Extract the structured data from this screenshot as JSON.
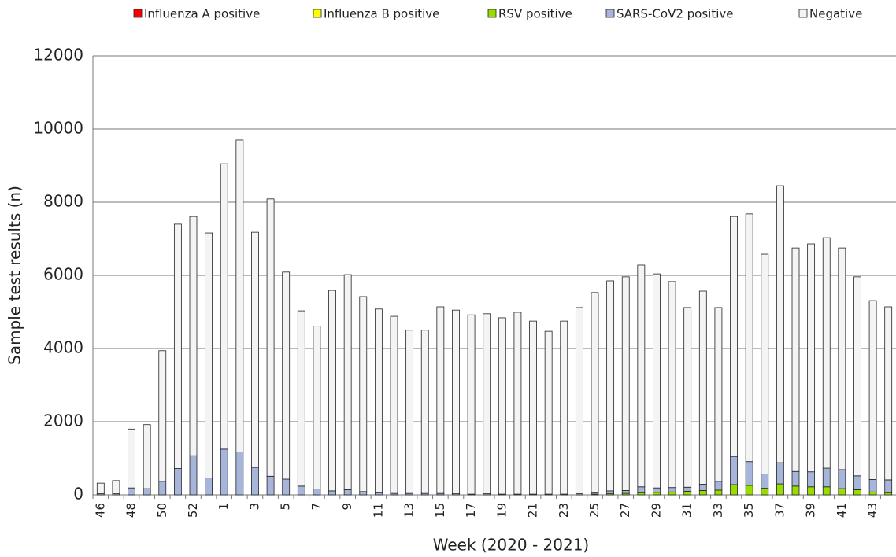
{
  "chart_data": {
    "type": "stacked_bar",
    "x_label": "Week (2020 - 2021)",
    "y_label": "Sample test results (n)",
    "categories": [
      "46",
      null,
      "48",
      null,
      "50",
      null,
      "52",
      null,
      "1",
      null,
      "3",
      null,
      "5",
      null,
      "7",
      null,
      "9",
      null,
      "11",
      null,
      "13",
      null,
      "15",
      null,
      "17",
      null,
      "19",
      null,
      "21",
      null,
      "23",
      null,
      "25",
      null,
      "27",
      null,
      "29",
      null,
      "31",
      null,
      "33",
      null,
      "35",
      null,
      "37",
      null,
      "39",
      null,
      "41",
      null,
      "43",
      null
    ],
    "series": [
      {
        "name": "Influenza A positive",
        "color": "#ff0000",
        "values": [
          0,
          0,
          0,
          0,
          0,
          0,
          0,
          0,
          0,
          0,
          0,
          0,
          0,
          0,
          0,
          0,
          0,
          0,
          0,
          0,
          0,
          0,
          0,
          0,
          0,
          0,
          0,
          0,
          0,
          0,
          0,
          0,
          0,
          0,
          0,
          0,
          0,
          0,
          0,
          0,
          0,
          0,
          0,
          0,
          0,
          0,
          0,
          0,
          0,
          0,
          0,
          0
        ]
      },
      {
        "name": "Influenza B positive",
        "color": "#ffff00",
        "values": [
          0,
          0,
          0,
          0,
          0,
          0,
          0,
          0,
          0,
          0,
          0,
          0,
          0,
          0,
          0,
          0,
          0,
          0,
          0,
          0,
          0,
          0,
          0,
          0,
          0,
          0,
          0,
          0,
          0,
          0,
          0,
          0,
          0,
          0,
          0,
          0,
          0,
          0,
          0,
          0,
          0,
          0,
          0,
          0,
          0,
          0,
          0,
          0,
          0,
          0,
          0,
          0
        ]
      },
      {
        "name": "RSV positive",
        "color": "#99dd00",
        "values": [
          0,
          0,
          0,
          0,
          0,
          0,
          0,
          0,
          0,
          0,
          0,
          0,
          0,
          0,
          0,
          0,
          0,
          0,
          0,
          0,
          0,
          0,
          0,
          0,
          0,
          0,
          0,
          0,
          0,
          0,
          0,
          0,
          20,
          30,
          40,
          60,
          70,
          80,
          100,
          120,
          130,
          280,
          260,
          180,
          300,
          240,
          220,
          220,
          170,
          140,
          80,
          60
        ]
      },
      {
        "name": "SARS-CoV2 positive",
        "color": "#a6b5d9",
        "values": [
          30,
          30,
          190,
          170,
          370,
          720,
          1070,
          460,
          1250,
          1170,
          750,
          510,
          430,
          240,
          160,
          110,
          140,
          90,
          60,
          40,
          40,
          40,
          40,
          30,
          20,
          30,
          20,
          20,
          20,
          20,
          20,
          30,
          40,
          80,
          80,
          160,
          120,
          120,
          110,
          170,
          240,
          770,
          650,
          390,
          580,
          400,
          410,
          510,
          520,
          380,
          340,
          350
        ]
      },
      {
        "name": "Negative",
        "color": "#f4f4f4",
        "values": [
          290,
          360,
          1610,
          1750,
          3570,
          6680,
          6540,
          6700,
          7800,
          8530,
          6430,
          7580,
          5660,
          4790,
          4450,
          5480,
          5880,
          5330,
          5020,
          4840,
          4460,
          4460,
          5100,
          5020,
          4900,
          4920,
          4820,
          4970,
          4730,
          4450,
          4730,
          5090,
          5470,
          5740,
          5840,
          6060,
          5850,
          5630,
          4910,
          5280,
          4750,
          6560,
          6770,
          6010,
          7570,
          6110,
          6230,
          6300,
          6060,
          5440,
          4890,
          4730
        ]
      }
    ],
    "ylim": [
      0,
      12000
    ],
    "yticks": [
      0,
      2000,
      4000,
      6000,
      8000,
      10000,
      12000
    ],
    "grid": true,
    "legend": "top"
  }
}
